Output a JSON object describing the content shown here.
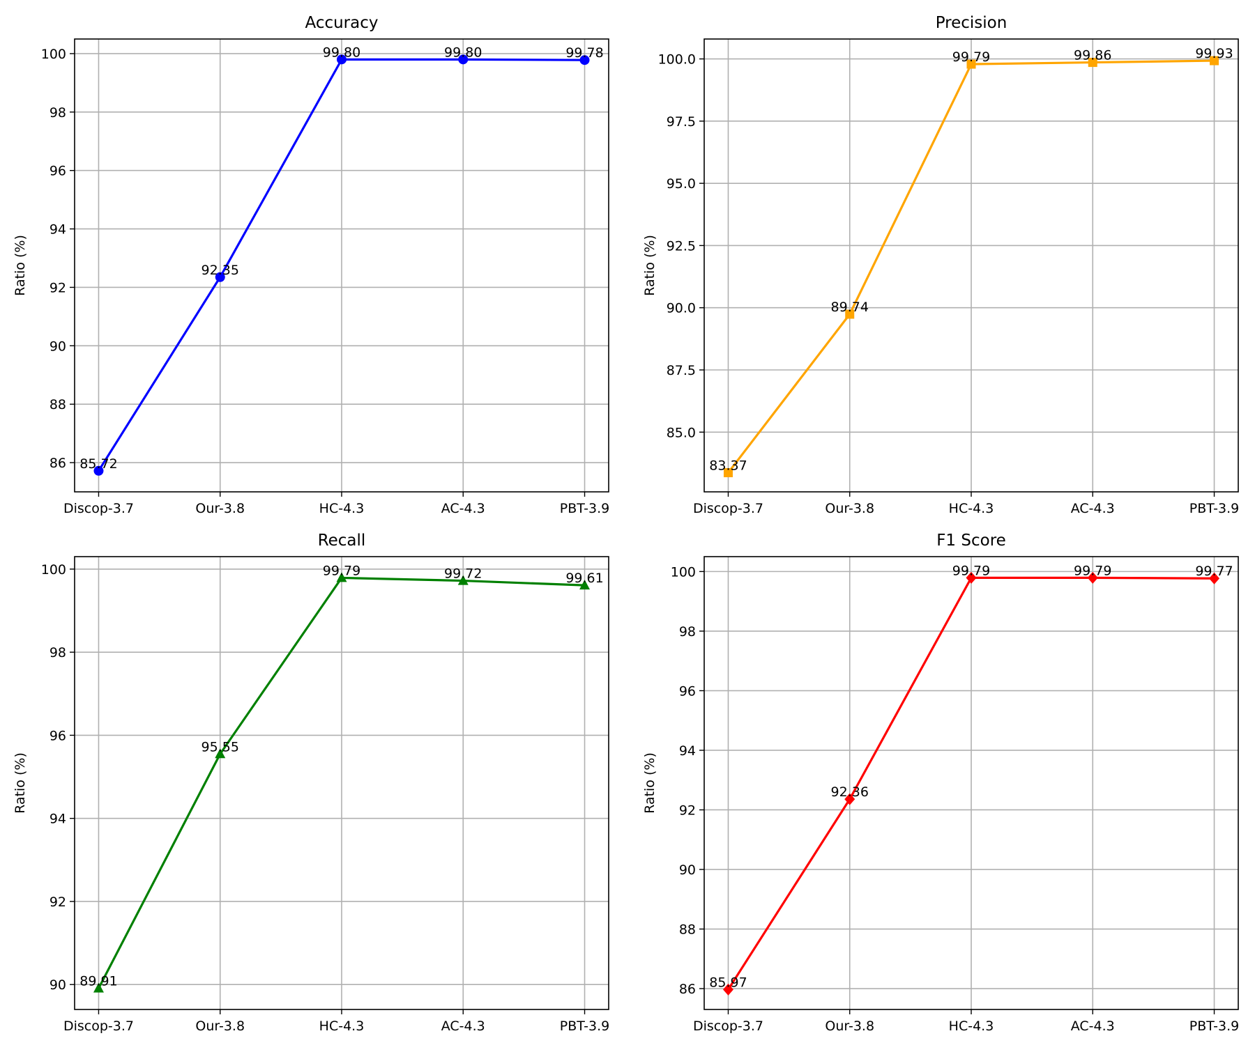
{
  "chart_data": [
    {
      "type": "line",
      "title": "Accuracy",
      "xlabel": "",
      "ylabel": "Ratio (%)",
      "categories": [
        "Discop-3.7",
        "Our-3.8",
        "HC-4.3",
        "AC-4.3",
        "PBT-3.9"
      ],
      "values": [
        85.72,
        92.35,
        99.8,
        99.8,
        99.78
      ],
      "data_labels": [
        "85.72",
        "92.35",
        "99.80",
        "99.80",
        "99.78"
      ],
      "ylim": [
        85.0,
        100.5
      ],
      "yticks": [
        86,
        88,
        90,
        92,
        94,
        96,
        98,
        100
      ],
      "ytick_labels": [
        "86",
        "88",
        "90",
        "92",
        "94",
        "96",
        "98",
        "100"
      ],
      "color": "#0000ff",
      "marker": "circle",
      "grid": true
    },
    {
      "type": "line",
      "title": "Precision",
      "xlabel": "",
      "ylabel": "Ratio (%)",
      "categories": [
        "Discop-3.7",
        "Our-3.8",
        "HC-4.3",
        "AC-4.3",
        "PBT-3.9"
      ],
      "values": [
        83.37,
        89.74,
        99.79,
        99.86,
        99.93
      ],
      "data_labels": [
        "83.37",
        "89.74",
        "99.79",
        "99.86",
        "99.93"
      ],
      "ylim": [
        82.6,
        100.8
      ],
      "yticks": [
        85.0,
        87.5,
        90.0,
        92.5,
        95.0,
        97.5,
        100.0
      ],
      "ytick_labels": [
        "85.0",
        "87.5",
        "90.0",
        "92.5",
        "95.0",
        "97.5",
        "100.0"
      ],
      "color": "#ffa500",
      "marker": "square",
      "grid": true
    },
    {
      "type": "line",
      "title": "Recall",
      "xlabel": "",
      "ylabel": "Ratio (%)",
      "categories": [
        "Discop-3.7",
        "Our-3.8",
        "HC-4.3",
        "AC-4.3",
        "PBT-3.9"
      ],
      "values": [
        89.91,
        95.55,
        99.79,
        99.72,
        99.61
      ],
      "data_labels": [
        "89.91",
        "95.55",
        "99.79",
        "99.72",
        "99.61"
      ],
      "ylim": [
        89.4,
        100.3
      ],
      "yticks": [
        90,
        92,
        94,
        96,
        98,
        100
      ],
      "ytick_labels": [
        "90",
        "92",
        "94",
        "96",
        "98",
        "100"
      ],
      "color": "#008000",
      "marker": "triangle",
      "grid": true
    },
    {
      "type": "line",
      "title": "F1 Score",
      "xlabel": "",
      "ylabel": "Ratio (%)",
      "categories": [
        "Discop-3.7",
        "Our-3.8",
        "HC-4.3",
        "AC-4.3",
        "PBT-3.9"
      ],
      "values": [
        85.97,
        92.36,
        99.79,
        99.79,
        99.77
      ],
      "data_labels": [
        "85.97",
        "92.36",
        "99.79",
        "99.79",
        "99.77"
      ],
      "ylim": [
        85.3,
        100.5
      ],
      "yticks": [
        86,
        88,
        90,
        92,
        94,
        96,
        98,
        100
      ],
      "ytick_labels": [
        "86",
        "88",
        "90",
        "92",
        "94",
        "96",
        "98",
        "100"
      ],
      "color": "#ff0000",
      "marker": "diamond",
      "grid": true
    }
  ]
}
